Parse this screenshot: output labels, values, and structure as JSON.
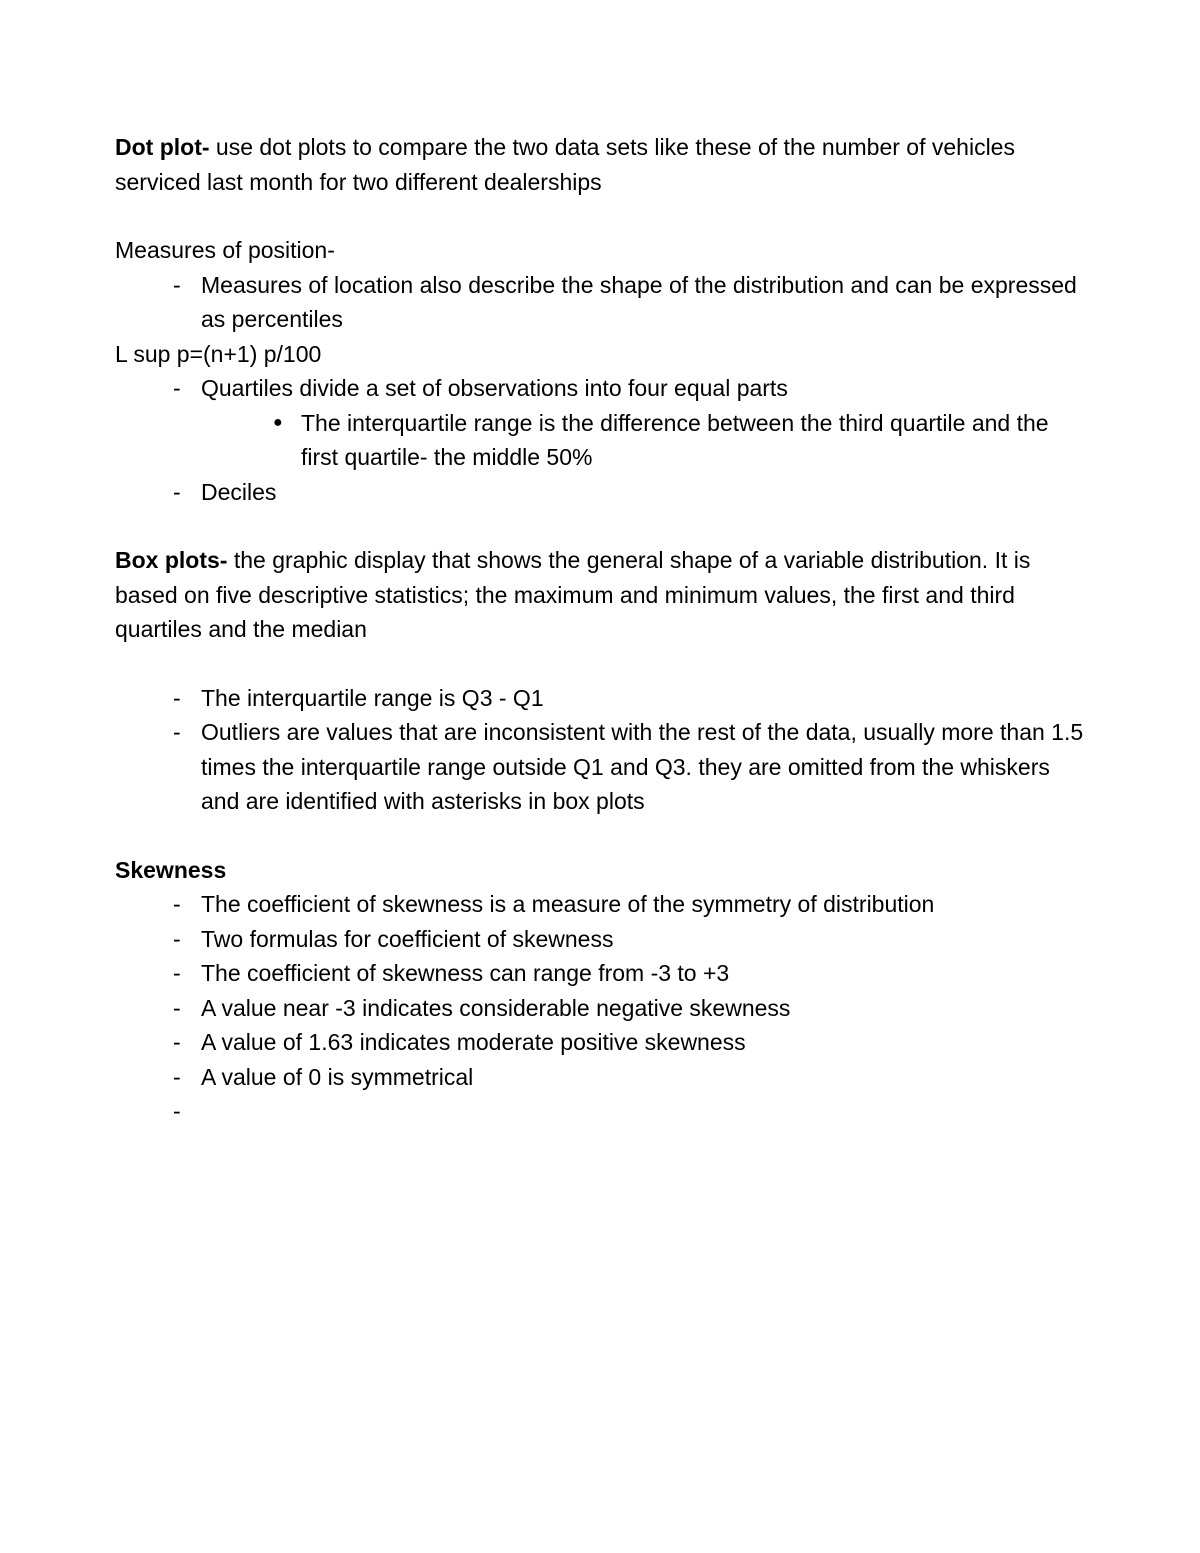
{
  "dotPlot": {
    "title": "Dot plot-",
    "desc": " use dot plots to compare the two data sets like these of the number of vehicles serviced last month for two different dealerships"
  },
  "measures": {
    "header": "Measures of position-",
    "item1": "Measures of location also describe the shape of the distribution and can be expressed as percentiles",
    "formula": "L sup p=(n+1) p/100",
    "item2": "Quartiles divide a set of observations into four equal parts",
    "sub1": "The interquartile range is the difference between the third quartile and the first quartile- the middle 50%",
    "item3": "Deciles"
  },
  "boxPlots": {
    "title": "Box plots-",
    "desc": "  the graphic display that shows the general shape of a variable distribution. It is based on five descriptive statistics; the maximum and minimum values, the first and third quartiles and the median",
    "item1": "The interquartile range is Q3 - Q1",
    "item2": "Outliers are values that are inconsistent with the rest of the data, usually more than 1.5 times the interquartile range outside Q1 and Q3. they are omitted from the whiskers and are identified with asterisks in box plots"
  },
  "skewness": {
    "header": "Skewness",
    "item1": "The coefficient of skewness is a measure of the symmetry of distribution",
    "item2": "Two formulas for coefficient of skewness",
    "item3": "The coefficient of skewness can range from -3 to +3",
    "item4": "A value near -3 indicates considerable negative skewness",
    "item5": "A value of 1.63 indicates moderate positive skewness",
    "item6": "A value of 0 is symmetrical",
    "item7": ""
  }
}
